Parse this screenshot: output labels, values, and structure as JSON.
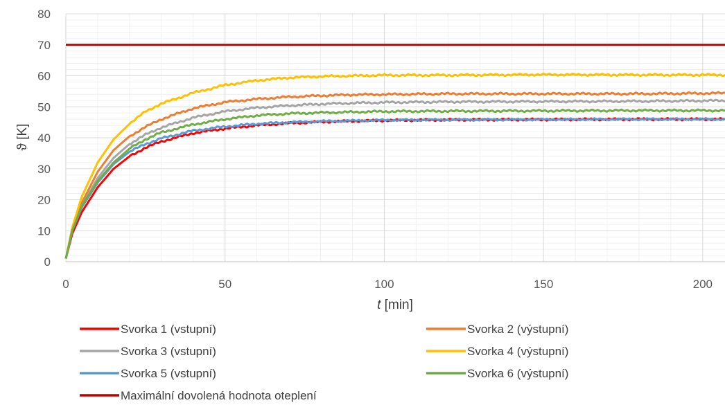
{
  "chart_data": {
    "type": "line",
    "xlabel_italic": "t",
    "xlabel_rest": " [min]",
    "ylabel": "ϑ [K]",
    "xlim": [
      0,
      207
    ],
    "ylim": [
      0,
      80
    ],
    "x_ticks": [
      0,
      50,
      100,
      150,
      200
    ],
    "x_minor_step": 10,
    "y_ticks": [
      0,
      10,
      20,
      30,
      40,
      50,
      60,
      70,
      80
    ],
    "y_minor_step": 2,
    "grid": true,
    "legend_position": "bottom",
    "series": [
      {
        "name": "Svorka 1 (vstupní)",
        "color": "#ff0000",
        "x": [
          0,
          2,
          5,
          10,
          15,
          20,
          25,
          30,
          40,
          50,
          60,
          70,
          80,
          90,
          100,
          120,
          150,
          180,
          207
        ],
        "y": [
          1,
          9,
          16,
          24,
          30,
          34,
          36.8,
          38.8,
          41.5,
          43,
          44,
          44.7,
          45.1,
          45.4,
          45.6,
          45.8,
          45.9,
          46,
          46
        ]
      },
      {
        "name": "Svorka 2 (výstupní)",
        "color": "#ed7d31",
        "x": [
          0,
          2,
          5,
          10,
          15,
          20,
          25,
          30,
          40,
          50,
          60,
          70,
          80,
          90,
          100,
          120,
          150,
          180,
          207
        ],
        "y": [
          1,
          10,
          19,
          29,
          36,
          40.5,
          43.5,
          46,
          49.5,
          51.5,
          52.5,
          53.2,
          53.6,
          53.9,
          54,
          54.2,
          54.2,
          54.2,
          54.4
        ]
      },
      {
        "name": "Svorka 3 (vstupní)",
        "color": "#a5a5a5",
        "x": [
          0,
          2,
          5,
          10,
          15,
          20,
          25,
          30,
          40,
          50,
          60,
          70,
          80,
          90,
          100,
          120,
          150,
          180,
          207
        ],
        "y": [
          1,
          10,
          18,
          27,
          33.5,
          38,
          41,
          43.3,
          46.5,
          48.5,
          49.7,
          50.4,
          50.9,
          51.2,
          51.4,
          51.6,
          51.7,
          51.8,
          52
        ]
      },
      {
        "name": "Svorka 4 (výstupní)",
        "color": "#ffc000",
        "x": [
          0,
          2,
          5,
          10,
          15,
          20,
          25,
          30,
          40,
          50,
          60,
          70,
          80,
          90,
          100,
          120,
          150,
          180,
          207
        ],
        "y": [
          1,
          11,
          21,
          32,
          39.5,
          44.5,
          48.5,
          51,
          54.5,
          57,
          58.5,
          59.4,
          59.8,
          60,
          60.2,
          60.2,
          60.4,
          60.3,
          60.3
        ]
      },
      {
        "name": "Svorka 5 (vstupní)",
        "color": "#5b9bd5",
        "x": [
          0,
          2,
          5,
          10,
          15,
          20,
          25,
          30,
          40,
          50,
          60,
          70,
          80,
          90,
          100,
          120,
          150,
          180,
          207
        ],
        "y": [
          1,
          10,
          17.5,
          25.5,
          31.5,
          35.5,
          38,
          39.8,
          42.3,
          43.6,
          44.5,
          45,
          45.3,
          45.5,
          45.7,
          45.8,
          45.9,
          46,
          46
        ]
      },
      {
        "name": "Svorka 6 (výstupní)",
        "color": "#70ad47",
        "x": [
          0,
          2,
          5,
          10,
          15,
          20,
          25,
          30,
          40,
          50,
          60,
          70,
          80,
          90,
          100,
          120,
          150,
          180,
          207
        ],
        "y": [
          1,
          10,
          18,
          26,
          32,
          36.5,
          39.5,
          41.7,
          44.3,
          46,
          47.2,
          47.8,
          48.1,
          48.3,
          48.5,
          48.6,
          48.7,
          48.8,
          48.8
        ]
      },
      {
        "name": "Maximální dovolená hodnota oteplení",
        "color": "#c00000",
        "x": [
          0,
          207
        ],
        "y": [
          70,
          70
        ]
      }
    ]
  }
}
